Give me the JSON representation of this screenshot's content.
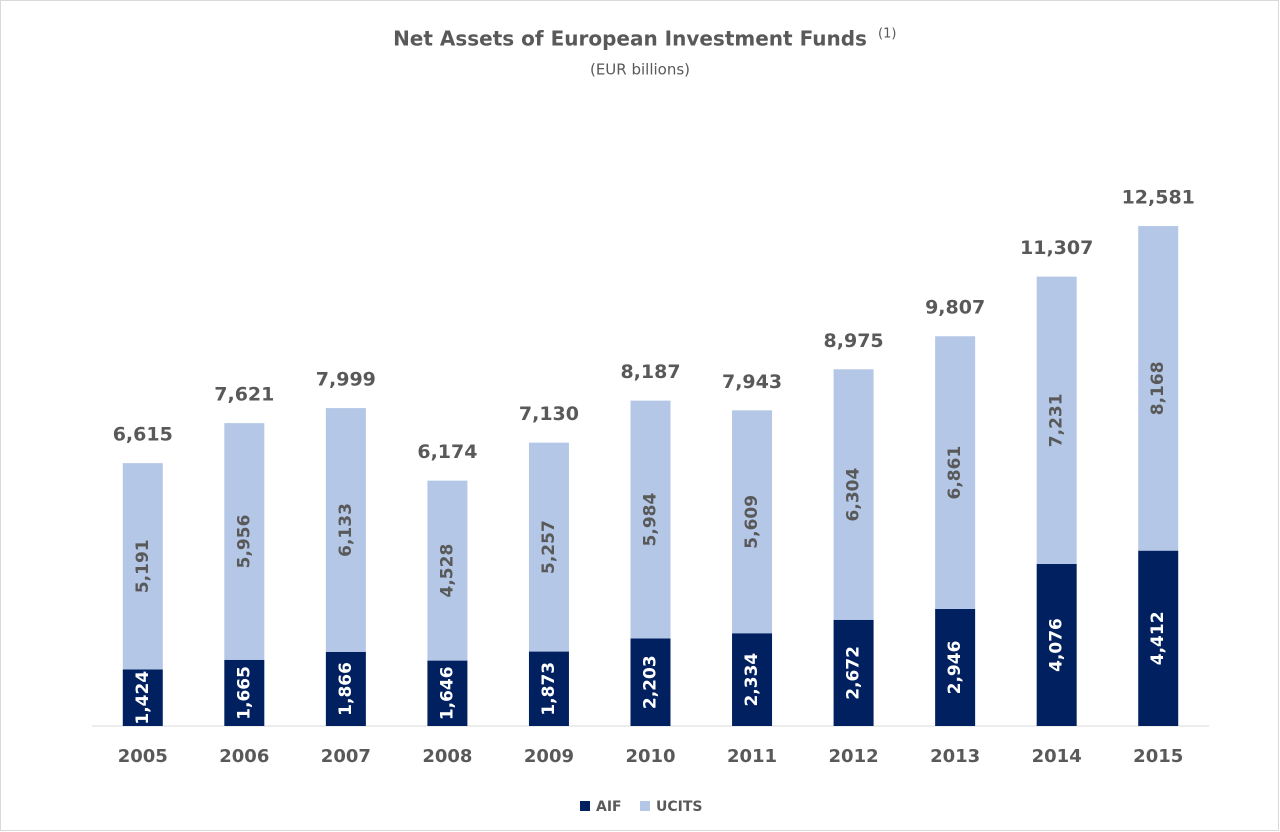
{
  "chart_data": {
    "type": "stacked_bar",
    "title": "Net Assets of European Investment Funds",
    "title_note": "(1)",
    "subtitle": "(EUR billions)",
    "categories": [
      "2005",
      "2006",
      "2007",
      "2008",
      "2009",
      "2010",
      "2011",
      "2012",
      "2013",
      "2014",
      "2015"
    ],
    "series": [
      {
        "name": "AIF",
        "color": "#002060",
        "values": [
          1424,
          1665,
          1866,
          1646,
          1873,
          2203,
          2334,
          2672,
          2946,
          4076,
          4412
        ],
        "value_labels": [
          "1,424",
          "1,665",
          "1,866",
          "1,646",
          "1,873",
          "2,203",
          "2,334",
          "2,672",
          "2,946",
          "4,076",
          "4,412"
        ]
      },
      {
        "name": "UCITS",
        "color": "#b4c7e7",
        "values": [
          5191,
          5956,
          6133,
          4528,
          5257,
          5984,
          5609,
          6304,
          6861,
          7231,
          8168
        ],
        "value_labels": [
          "5,191",
          "5,956",
          "6,133",
          "4,528",
          "5,257",
          "5,984",
          "5,609",
          "6,304",
          "6,861",
          "7,231",
          "8,168"
        ]
      }
    ],
    "totals": [
      6615,
      7621,
      7999,
      6174,
      7130,
      8187,
      7943,
      8975,
      9807,
      11307,
      12581
    ],
    "total_labels": [
      "6,615",
      "7,621",
      "7,999",
      "6,174",
      "7,130",
      "8,187",
      "7,943",
      "8,975",
      "9,807",
      "11,307",
      "12,581"
    ],
    "legend": "bottom"
  }
}
